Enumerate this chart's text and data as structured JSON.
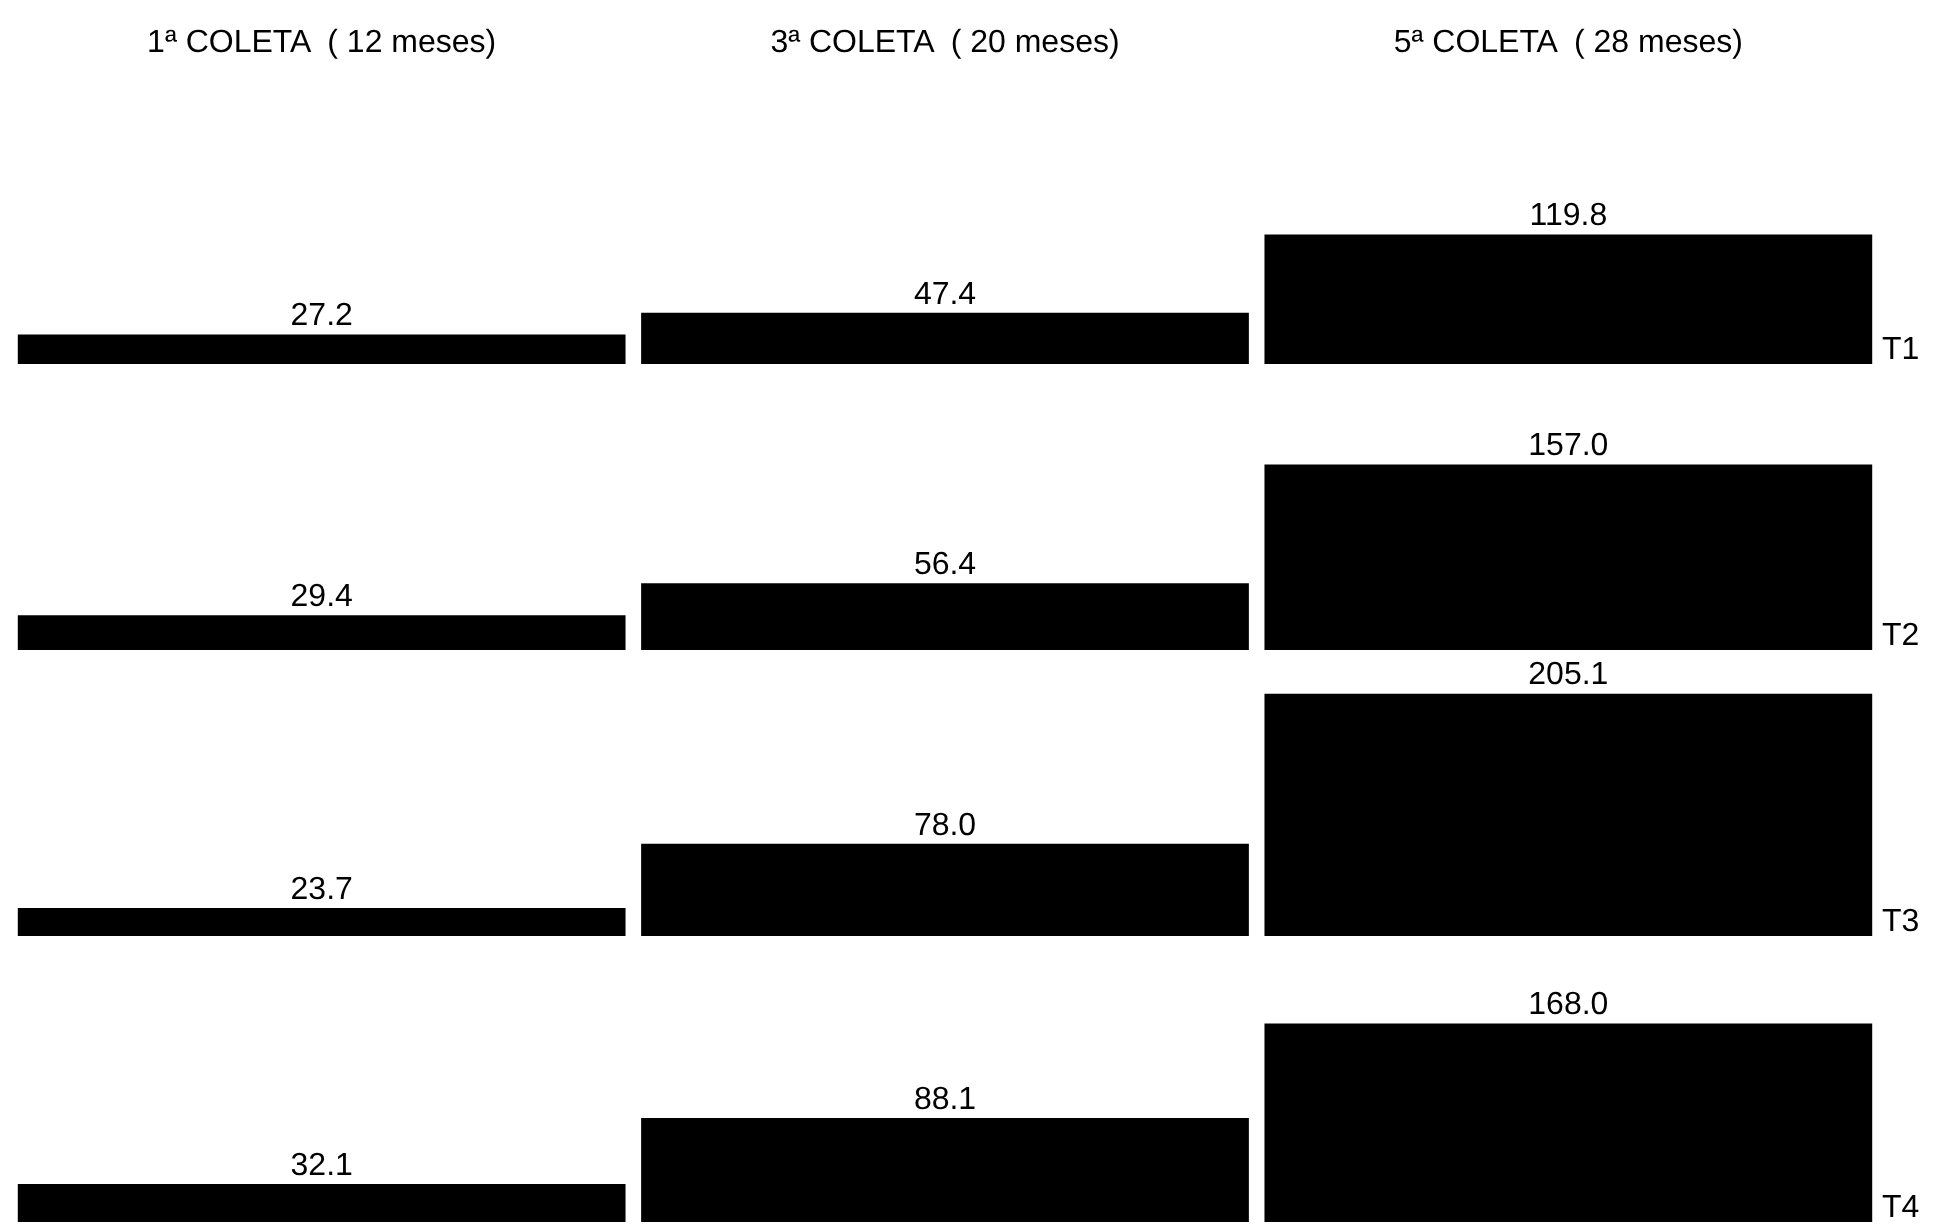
{
  "chart_data": [
    {
      "type": "bar",
      "categories": [
        "1ª COLETA  ( 12 meses)",
        "3ª COLETA  ( 20 meses)",
        "5ª COLETA  ( 28 meses)"
      ],
      "series": [
        {
          "name": "T1",
          "color": "#000000",
          "values": [
            27.2,
            47.4,
            119.8
          ],
          "value_labels": [
            "27.2",
            "47.4",
            "119.8"
          ]
        }
      ],
      "tick_labels": "x"
    },
    {
      "type": "bar",
      "categories": [
        null,
        null,
        null
      ],
      "series": [
        {
          "name": "T2",
          "color": "#000000",
          "values": [
            29.4,
            56.4,
            157.0
          ],
          "value_labels": [
            "29.4",
            "56.4",
            "157.0"
          ]
        }
      ],
      "tick_labels": false
    },
    {
      "type": "bar",
      "categories": [
        null,
        null,
        null
      ],
      "series": [
        {
          "name": "T3",
          "color": "#000000",
          "values": [
            23.7,
            78.0,
            205.1
          ],
          "value_labels": [
            "23.7",
            "78.0",
            "205.1"
          ]
        }
      ],
      "tick_labels": false
    },
    {
      "type": "bar",
      "categories": [
        null,
        null,
        null
      ],
      "series": [
        {
          "name": "T4",
          "color": "#000000",
          "values": [
            32.1,
            88.1,
            168.0
          ],
          "value_labels": [
            "32.1",
            "88.1",
            "168.0"
          ]
        }
      ],
      "tick_labels": false
    }
  ]
}
